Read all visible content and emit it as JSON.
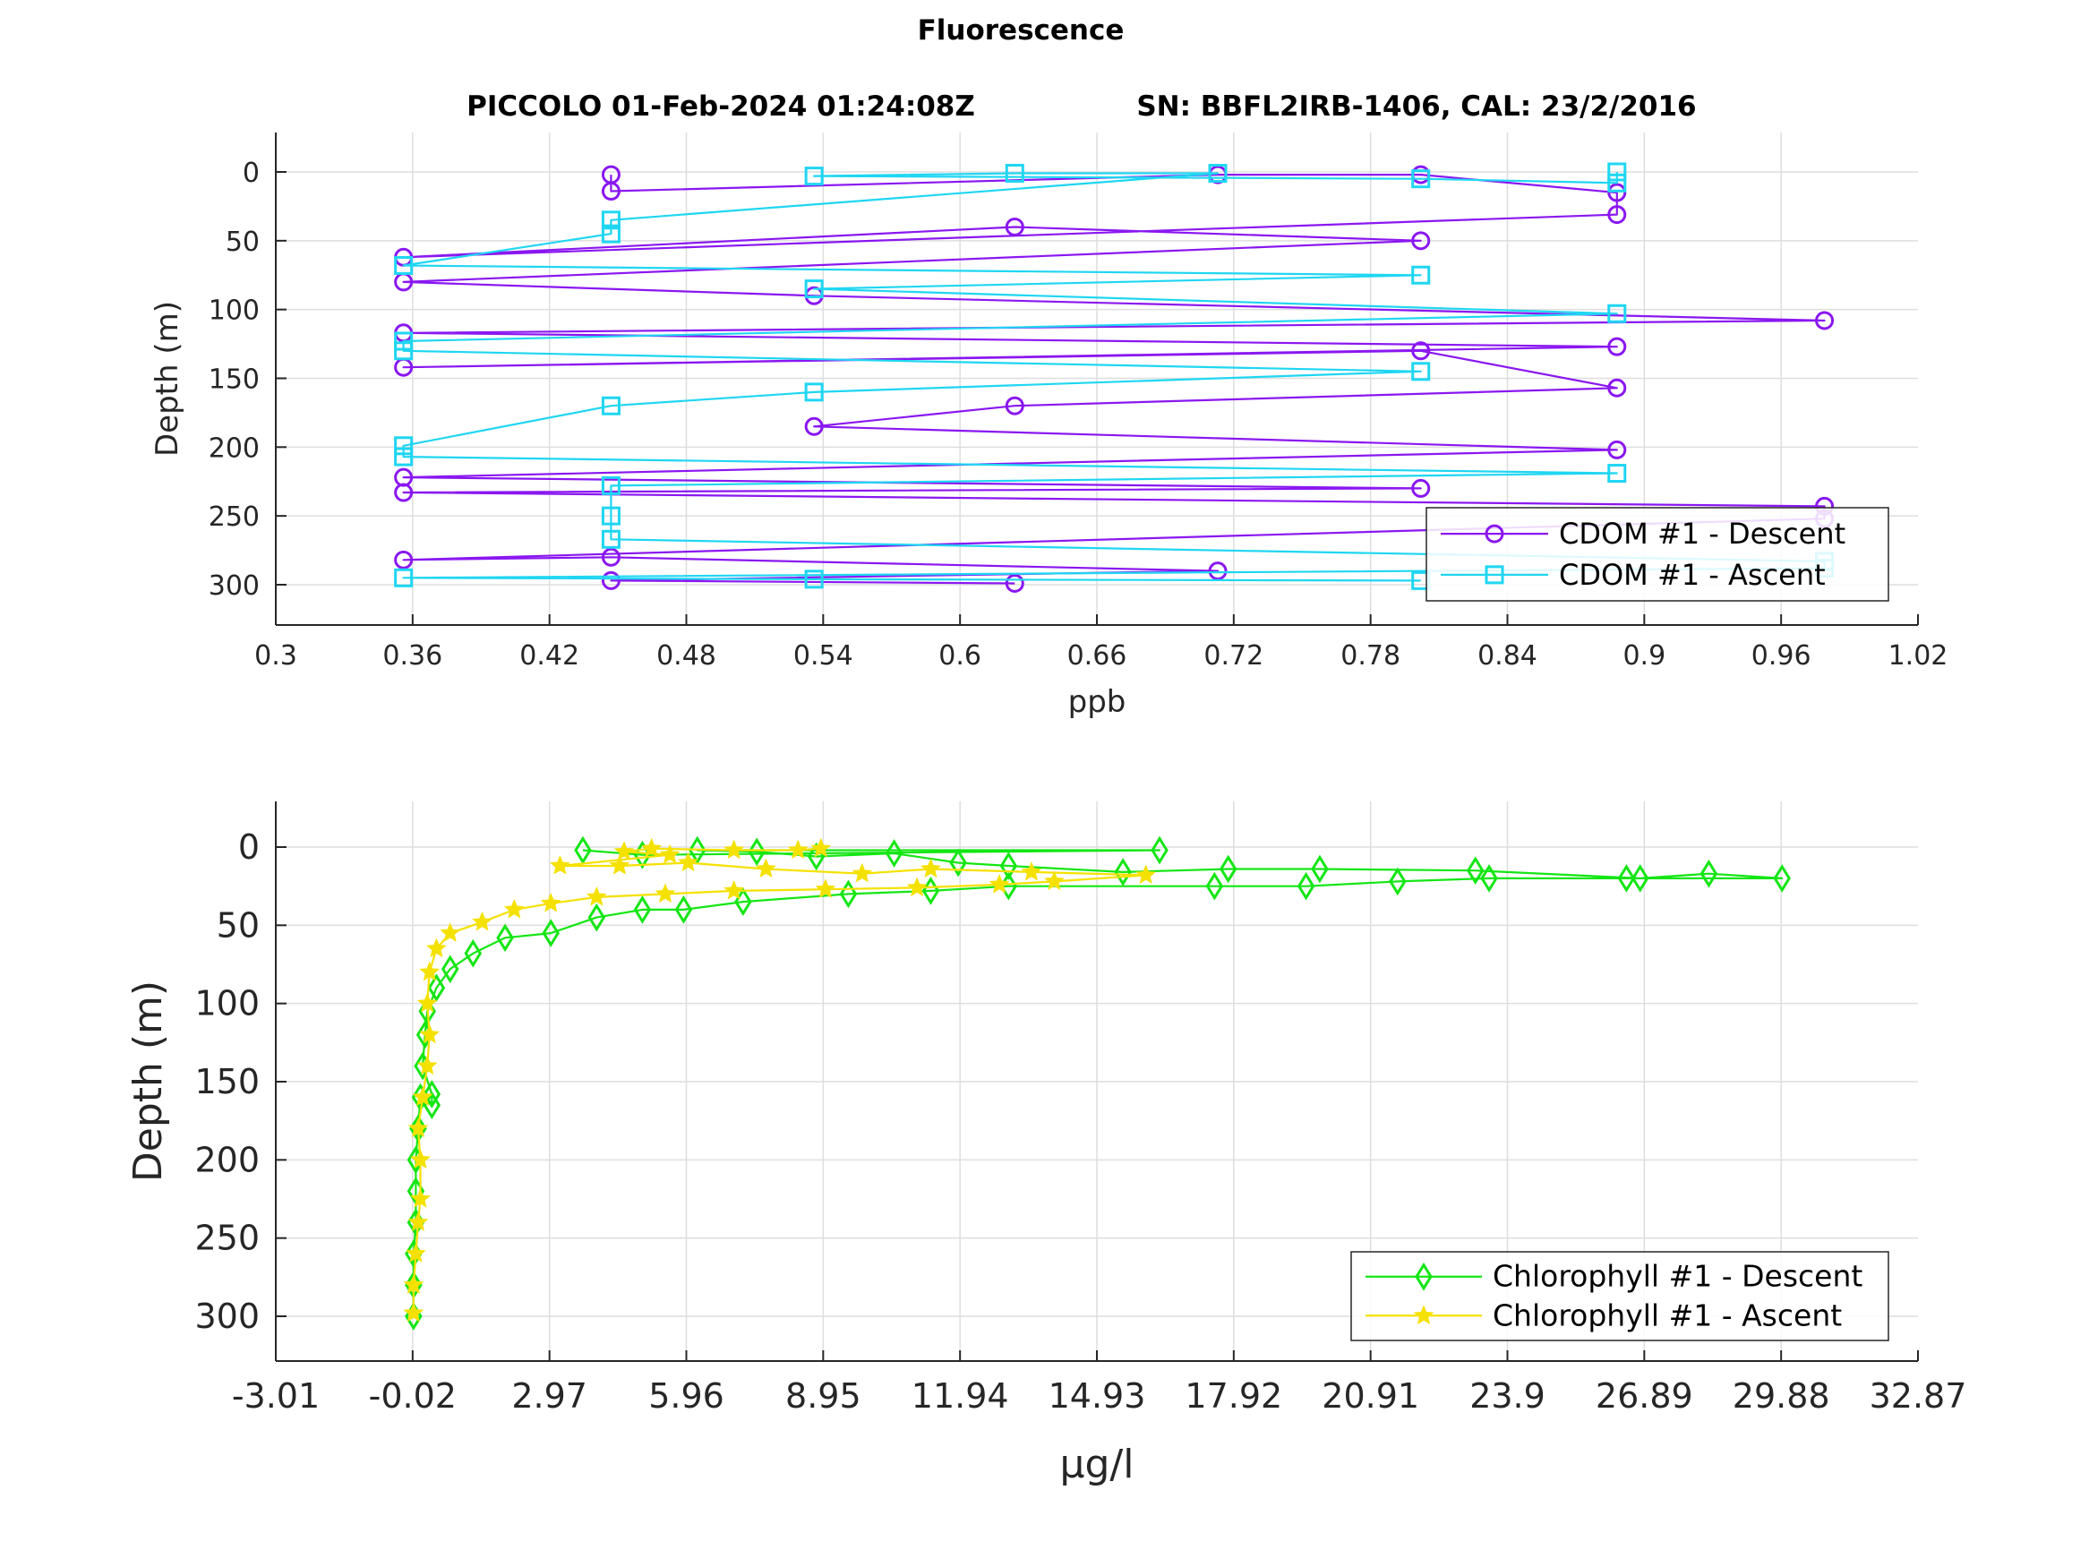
{
  "figure": {
    "suptitle": "Fluorescence",
    "subtitle_left": "PICCOLO 01-Feb-2024 01:24:08Z",
    "subtitle_right": "SN: BBFL2IRB-1406, CAL: 23/2/2016"
  },
  "colors": {
    "cdom_descent": "#8a17f0",
    "cdom_ascent": "#1fd6f2",
    "chl_descent": "#14e614",
    "chl_ascent": "#f5e100"
  },
  "chart_data": [
    {
      "type": "line",
      "title": "",
      "xlabel": "ppb",
      "ylabel": "Depth (m)",
      "xlim": [
        0.3,
        1.02
      ],
      "ylim": [
        0,
        300
      ],
      "y_reversed": true,
      "grid": true,
      "legend_position": "bottom-right",
      "xticks": [
        "0.3",
        "0.36",
        "0.42",
        "0.48",
        "0.54",
        "0.6",
        "0.66",
        "0.72",
        "0.78",
        "0.84",
        "0.9",
        "0.96",
        "1.02"
      ],
      "yticks": [
        "0",
        "50",
        "100",
        "150",
        "200",
        "250",
        "300"
      ],
      "series": [
        {
          "name": "CDOM #1 - Descent",
          "marker": "circle",
          "color": "#8a17f0",
          "points": [
            [
              0.447,
              2
            ],
            [
              0.447,
              14
            ],
            [
              0.713,
              2
            ],
            [
              0.802,
              2
            ],
            [
              0.888,
              15
            ],
            [
              0.888,
              31
            ],
            [
              0.356,
              62
            ],
            [
              0.624,
              40
            ],
            [
              0.802,
              50
            ],
            [
              0.356,
              80
            ],
            [
              0.536,
              90
            ],
            [
              0.979,
              108
            ],
            [
              0.356,
              117
            ],
            [
              0.888,
              127
            ],
            [
              0.356,
              142
            ],
            [
              0.802,
              130
            ],
            [
              0.888,
              157
            ],
            [
              0.624,
              170
            ],
            [
              0.536,
              185
            ],
            [
              0.888,
              202
            ],
            [
              0.356,
              222
            ],
            [
              0.802,
              230
            ],
            [
              0.356,
              233
            ],
            [
              0.979,
              243
            ],
            [
              0.979,
              252
            ],
            [
              0.356,
              282
            ],
            [
              0.447,
              280
            ],
            [
              0.713,
              290
            ],
            [
              0.447,
              297
            ],
            [
              0.624,
              299
            ]
          ]
        },
        {
          "name": "CDOM #1 - Ascent",
          "marker": "square",
          "color": "#1fd6f2",
          "points": [
            [
              0.888,
              0
            ],
            [
              0.888,
              8
            ],
            [
              0.802,
              5
            ],
            [
              0.536,
              3
            ],
            [
              0.624,
              1
            ],
            [
              0.713,
              1
            ],
            [
              0.447,
              35
            ],
            [
              0.447,
              45
            ],
            [
              0.356,
              68
            ],
            [
              0.802,
              75
            ],
            [
              0.536,
              85
            ],
            [
              0.888,
              103
            ],
            [
              0.356,
              123
            ],
            [
              0.356,
              130
            ],
            [
              0.802,
              145
            ],
            [
              0.536,
              160
            ],
            [
              0.447,
              170
            ],
            [
              0.356,
              199
            ],
            [
              0.356,
              207
            ],
            [
              0.888,
              219
            ],
            [
              0.447,
              228
            ],
            [
              0.447,
              250
            ],
            [
              0.447,
              267
            ],
            [
              0.979,
              283
            ],
            [
              0.979,
              288
            ],
            [
              0.356,
              295
            ],
            [
              0.536,
              296
            ],
            [
              0.802,
              297
            ]
          ]
        }
      ]
    },
    {
      "type": "line",
      "title": "",
      "xlabel": "µg/l",
      "ylabel": "Depth (m)",
      "xlim": [
        -3.01,
        32.87
      ],
      "ylim": [
        0,
        300
      ],
      "y_reversed": true,
      "grid": true,
      "legend_position": "bottom-right",
      "xticks": [
        "-3.01",
        "-0.02",
        "2.97",
        "5.96",
        "8.95",
        "11.94",
        "14.93",
        "17.92",
        "20.91",
        "23.9",
        "26.89",
        "29.88",
        "32.87"
      ],
      "yticks": [
        "0",
        "50",
        "100",
        "150",
        "200",
        "250",
        "300"
      ],
      "series": [
        {
          "name": "Chlorophyll #1 - Descent",
          "marker": "diamond",
          "color": "#14e614",
          "points": [
            [
              0.0,
              300
            ],
            [
              0.0,
              280
            ],
            [
              0.0,
              260
            ],
            [
              0.05,
              240
            ],
            [
              0.05,
              220
            ],
            [
              0.05,
              200
            ],
            [
              0.1,
              180
            ],
            [
              0.15,
              160
            ],
            [
              0.4,
              165
            ],
            [
              0.4,
              158
            ],
            [
              0.2,
              140
            ],
            [
              0.25,
              120
            ],
            [
              0.3,
              105
            ],
            [
              0.5,
              90
            ],
            [
              0.8,
              78
            ],
            [
              1.3,
              68
            ],
            [
              2.0,
              58
            ],
            [
              3.0,
              55
            ],
            [
              4.0,
              45
            ],
            [
              5.0,
              40
            ],
            [
              5.9,
              40
            ],
            [
              7.2,
              35
            ],
            [
              9.5,
              30
            ],
            [
              11.3,
              28
            ],
            [
              13.0,
              25
            ],
            [
              17.5,
              25
            ],
            [
              19.5,
              25
            ],
            [
              21.5,
              22
            ],
            [
              23.5,
              20
            ],
            [
              26.5,
              20
            ],
            [
              29.9,
              20
            ],
            [
              28.3,
              17
            ],
            [
              26.8,
              20
            ],
            [
              23.2,
              15
            ],
            [
              19.8,
              14
            ],
            [
              17.8,
              14
            ],
            [
              15.5,
              16
            ],
            [
              13.0,
              12
            ],
            [
              11.9,
              10
            ],
            [
              10.5,
              4
            ],
            [
              8.8,
              6
            ],
            [
              7.5,
              3
            ],
            [
              6.2,
              2
            ],
            [
              16.3,
              2
            ],
            [
              5.0,
              5
            ],
            [
              3.7,
              2
            ]
          ]
        },
        {
          "name": "Chlorophyll #1 - Ascent",
          "marker": "star",
          "color": "#f5e100",
          "points": [
            [
              0.0,
              298
            ],
            [
              0.0,
              280
            ],
            [
              0.05,
              260
            ],
            [
              0.1,
              240
            ],
            [
              0.15,
              225
            ],
            [
              0.15,
              200
            ],
            [
              0.1,
              180
            ],
            [
              0.2,
              160
            ],
            [
              0.3,
              140
            ],
            [
              0.35,
              120
            ],
            [
              0.3,
              100
            ],
            [
              0.35,
              80
            ],
            [
              0.5,
              65
            ],
            [
              0.8,
              55
            ],
            [
              1.5,
              48
            ],
            [
              2.2,
              40
            ],
            [
              3.0,
              36
            ],
            [
              4.0,
              32
            ],
            [
              5.5,
              30
            ],
            [
              7.0,
              28
            ],
            [
              9.0,
              27
            ],
            [
              11.0,
              26
            ],
            [
              12.8,
              24
            ],
            [
              14.0,
              22
            ],
            [
              16.0,
              18
            ],
            [
              13.5,
              16
            ],
            [
              11.3,
              14
            ],
            [
              9.8,
              17
            ],
            [
              7.7,
              14
            ],
            [
              6.0,
              10
            ],
            [
              4.5,
              12
            ],
            [
              3.2,
              12
            ],
            [
              5.6,
              5
            ],
            [
              4.6,
              3
            ],
            [
              5.2,
              1
            ],
            [
              7.0,
              2
            ],
            [
              8.4,
              2
            ],
            [
              8.9,
              1
            ]
          ]
        }
      ]
    }
  ]
}
